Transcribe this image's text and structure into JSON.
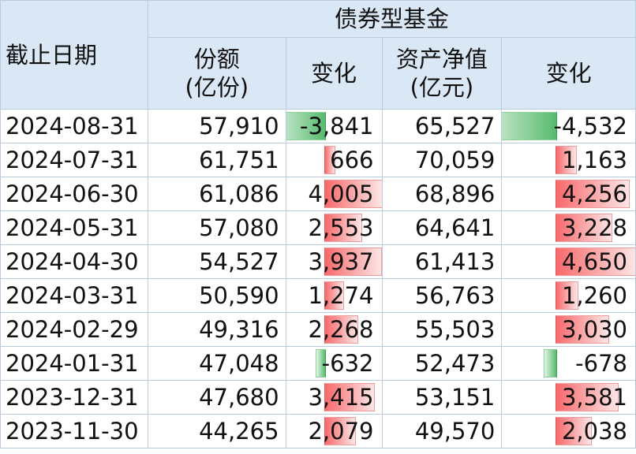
{
  "headers": {
    "date": "截止日期",
    "group": "债券型基金",
    "shares": [
      "份额",
      "(亿份)"
    ],
    "shares_change": "变化",
    "nav": [
      "资产净值",
      "(亿元)"
    ],
    "nav_change": "变化"
  },
  "colors": {
    "positive_bar": "#f8696b",
    "negative_bar": "#57bb6e",
    "header_bg": "#dae7f5"
  },
  "rows": [
    {
      "date": "2024-08-31",
      "shares": "57,910",
      "shares_change": "-3,841",
      "shares_change_value": -3841,
      "nav": "65,527",
      "nav_change": "-4,532",
      "nav_change_value": -4532
    },
    {
      "date": "2024-07-31",
      "shares": "61,751",
      "shares_change": "666",
      "shares_change_value": 666,
      "nav": "70,059",
      "nav_change": "1,163",
      "nav_change_value": 1163
    },
    {
      "date": "2024-06-30",
      "shares": "61,086",
      "shares_change": "4,005",
      "shares_change_value": 4005,
      "nav": "68,896",
      "nav_change": "4,256",
      "nav_change_value": 4256
    },
    {
      "date": "2024-05-31",
      "shares": "57,080",
      "shares_change": "2,553",
      "shares_change_value": 2553,
      "nav": "64,641",
      "nav_change": "3,228",
      "nav_change_value": 3228
    },
    {
      "date": "2024-04-30",
      "shares": "54,527",
      "shares_change": "3,937",
      "shares_change_value": 3937,
      "nav": "61,413",
      "nav_change": "4,650",
      "nav_change_value": 4650
    },
    {
      "date": "2024-03-31",
      "shares": "50,590",
      "shares_change": "1,274",
      "shares_change_value": 1274,
      "nav": "56,763",
      "nav_change": "1,260",
      "nav_change_value": 1260
    },
    {
      "date": "2024-02-29",
      "shares": "49,316",
      "shares_change": "2,268",
      "shares_change_value": 2268,
      "nav": "55,503",
      "nav_change": "3,030",
      "nav_change_value": 3030
    },
    {
      "date": "2024-01-31",
      "shares": "47,048",
      "shares_change": "-632",
      "shares_change_value": -632,
      "nav": "52,473",
      "nav_change": "-678",
      "nav_change_value": -678
    },
    {
      "date": "2023-12-31",
      "shares": "47,680",
      "shares_change": "3,415",
      "shares_change_value": 3415,
      "nav": "53,151",
      "nav_change": "3,581",
      "nav_change_value": 3581
    },
    {
      "date": "2023-11-30",
      "shares": "44,265",
      "shares_change": "2,079",
      "shares_change_value": 2079,
      "nav": "49,570",
      "nav_change": "2,038",
      "nav_change_value": 2038
    }
  ]
}
